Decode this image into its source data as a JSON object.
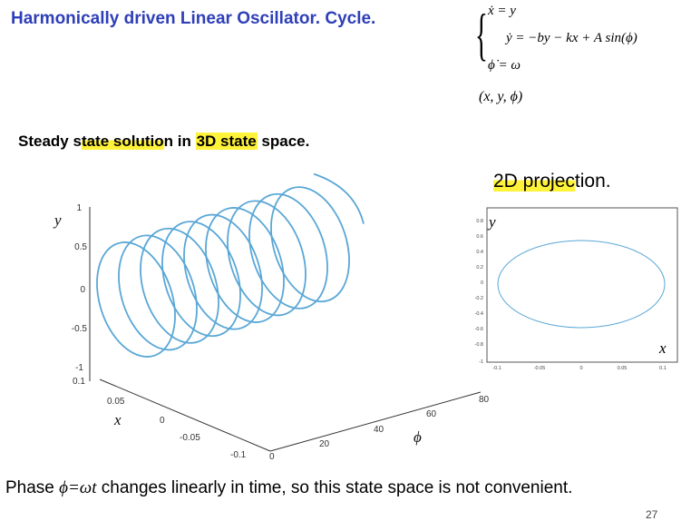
{
  "title": "Harmonically driven Linear Oscillator. Cycle.",
  "equations": {
    "eq1": "ẋ = y",
    "eq2": "ẏ = −by − kx + A sin(ϕ)",
    "eq3": "ϕ̇ = ω",
    "state": "(x, y, ϕ)"
  },
  "subtitle": {
    "part1": "Steady s",
    "part2": "tate solutio",
    "part3": "n in ",
    "part4": "3D state",
    "part5": " space."
  },
  "projection_title": {
    "part1": "2D projec",
    "part2": "tion."
  },
  "plot3d": {
    "y_axis_label": "y",
    "x_axis_label": "x",
    "phi_axis_label": "ϕ",
    "y_ticks": [
      "1",
      "0.5",
      "0",
      "-0.5",
      "-1"
    ],
    "x_ticks": [
      "0.1",
      "0.05",
      "0",
      "-0.05",
      "-0.1"
    ],
    "phi_ticks": [
      "0",
      "20",
      "40",
      "60",
      "80"
    ],
    "line_color": "#5aa7d6",
    "loops": 9
  },
  "plot2d": {
    "y_axis_label": "y",
    "x_axis_label": "x",
    "y_ticks": [
      "0.8",
      "0.6",
      "0.4",
      "0.2",
      "0",
      "-0.2",
      "-0.4",
      "-0.6",
      "-0.8",
      "-1"
    ],
    "x_ticks": [
      "-0.1",
      "-0.05",
      "0",
      "0.05",
      "0.1"
    ],
    "line_color": "#5aa7d6"
  },
  "phase_text": {
    "part1": "Phase ",
    "math": "ϕ=ωt",
    "part2": " changes linearly in time, so this state space is not convenient."
  },
  "page_number": "27"
}
